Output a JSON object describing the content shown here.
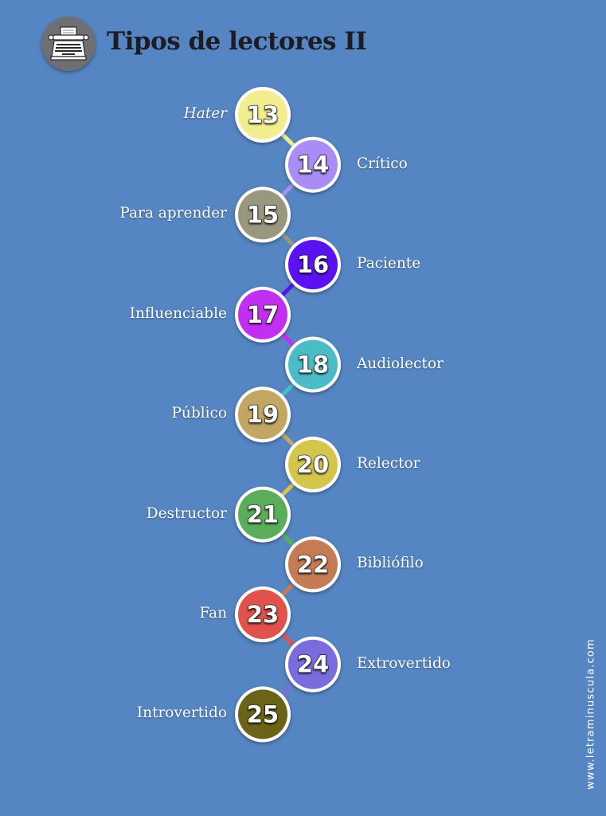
{
  "page": {
    "background": "#5585c2",
    "title": "Tipos de lectores II",
    "logo_icon": "typewriter-icon",
    "watermark": "www.letraminuscula.com"
  },
  "readers": [
    {
      "number": "13",
      "label": "Hater",
      "italic": true,
      "side": "left",
      "color": "#f2ed8f"
    },
    {
      "number": "14",
      "label": "Crítico",
      "italic": false,
      "side": "right",
      "color": "#a98cf5"
    },
    {
      "number": "15",
      "label": "Para aprender",
      "italic": false,
      "side": "left",
      "color": "#99977e"
    },
    {
      "number": "16",
      "label": "Paciente",
      "italic": false,
      "side": "right",
      "color": "#5a12f0"
    },
    {
      "number": "17",
      "label": "Influenciable",
      "italic": false,
      "side": "left",
      "color": "#c22ff0"
    },
    {
      "number": "18",
      "label": "Audiolector",
      "italic": false,
      "side": "right",
      "color": "#49bcc7"
    },
    {
      "number": "19",
      "label": "Público",
      "italic": false,
      "side": "left",
      "color": "#c1a664"
    },
    {
      "number": "20",
      "label": "Relector",
      "italic": false,
      "side": "right",
      "color": "#d4c54d"
    },
    {
      "number": "21",
      "label": "Destructor",
      "italic": false,
      "side": "left",
      "color": "#5aad5a"
    },
    {
      "number": "22",
      "label": "Bibliófilo",
      "italic": false,
      "side": "right",
      "color": "#c57c55"
    },
    {
      "number": "23",
      "label": "Fan",
      "italic": false,
      "side": "left",
      "color": "#e0524b"
    },
    {
      "number": "24",
      "label": "Extrovertido",
      "italic": false,
      "side": "right",
      "color": "#7a6cde"
    },
    {
      "number": "25",
      "label": "Introvertido",
      "italic": false,
      "side": "left",
      "color": "#6b6318"
    }
  ]
}
